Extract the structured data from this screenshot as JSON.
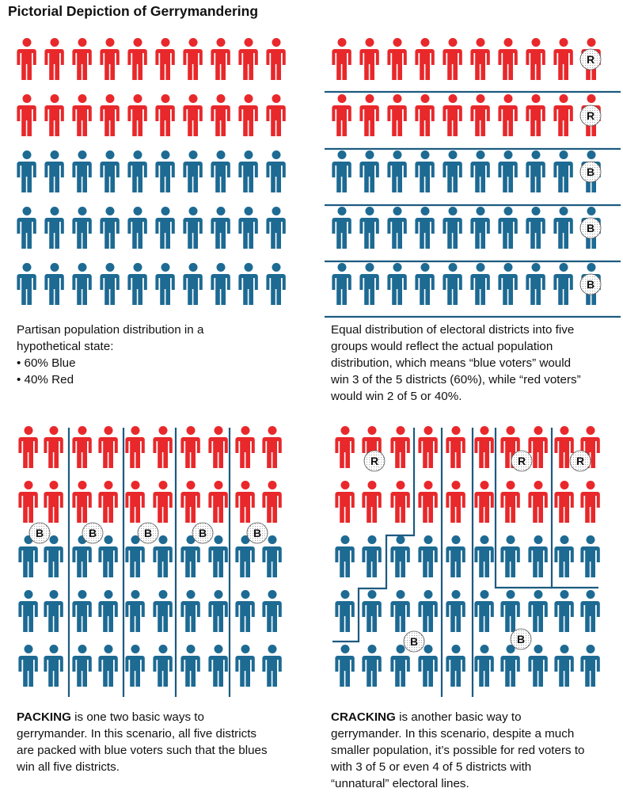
{
  "title": "Pictorial Depiction of Gerrymandering",
  "colors": {
    "red": "#e8282b",
    "blue": "#1d6a93",
    "line": "#1d5a80",
    "badge_fill": "#ffffff",
    "badge_dots": "#8a8a8a"
  },
  "grid": {
    "rows": 5,
    "cols": 10,
    "row_parties": [
      "red",
      "red",
      "blue",
      "blue",
      "blue"
    ]
  },
  "panels": [
    {
      "id": "population",
      "caption_lines": [
        "Partisan population distribution in a",
        "hypothetical state:",
        "• 60% Blue",
        "• 40% Red"
      ]
    },
    {
      "id": "equal",
      "badges": [
        "R",
        "R",
        "B",
        "B",
        "B"
      ],
      "caption_lines": [
        "Equal distribution of electoral districts into five",
        "groups would reflect the actual population",
        "distribution, which means “blue voters” would",
        "win 3 of the 5 districts (60%), while “red voters”",
        "would win 2 of 5 or 40%."
      ]
    },
    {
      "id": "packing",
      "badges": [
        "B",
        "B",
        "B",
        "B",
        "B"
      ],
      "caption_keyword": "PACKING",
      "caption_lines": [
        "is one two basic ways to",
        "gerrymander. In this scenario, all five districts",
        "are packed with blue voters such that the blues",
        "win all five districts."
      ]
    },
    {
      "id": "cracking",
      "badges": [
        "R",
        "R",
        "R",
        "B",
        "B"
      ],
      "caption_keyword": "CRACKING",
      "caption_lines": [
        "is another basic way to",
        "gerrymander. In this scenario, despite a much",
        "smaller population, it’s possible for red voters to",
        "with 3 of 5 or even 4 of 5 districts with",
        "“unnatural” electoral lines."
      ]
    }
  ]
}
